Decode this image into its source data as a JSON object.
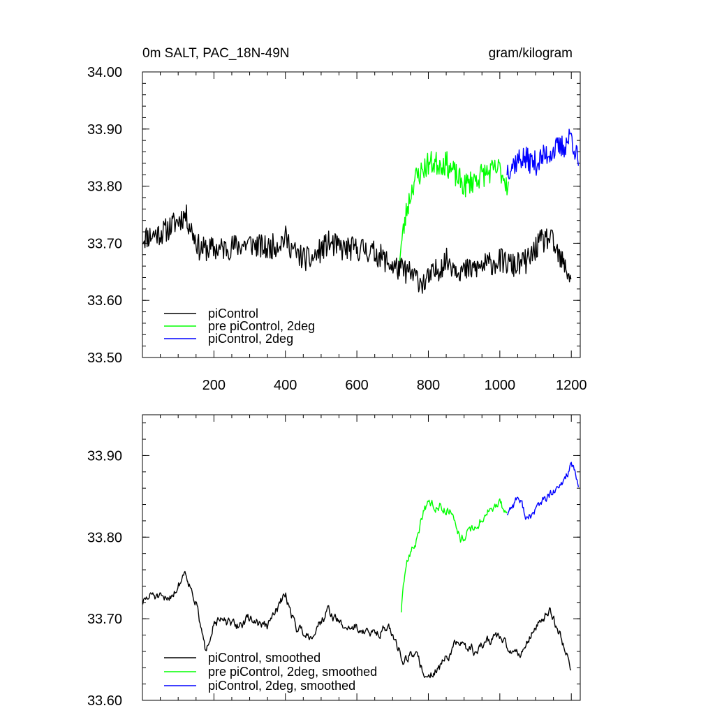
{
  "chart_data": [
    {
      "type": "line",
      "title_left": "0m SALT, PAC_18N-49N",
      "title_right": "gram/kilogram",
      "xlabel": "",
      "ylabel": "",
      "xlim": [
        0,
        1225
      ],
      "ylim": [
        33.5,
        34.0
      ],
      "x_ticks": [
        200,
        400,
        600,
        800,
        1000,
        1200
      ],
      "x_tick_labels": [
        "200",
        "400",
        "600",
        "800",
        "1000",
        "1200"
      ],
      "y_ticks": [
        33.5,
        33.6,
        33.7,
        33.8,
        33.9,
        34.0
      ],
      "y_tick_labels": [
        "33.50",
        "33.60",
        "33.70",
        "33.80",
        "33.90",
        "34.00"
      ],
      "grid": false,
      "legend_position": "bottom-left",
      "series": [
        {
          "name": "piControl",
          "color": "#000000",
          "noise": 0.022,
          "seed": 11,
          "points": [
            [
              1,
              33.71
            ],
            [
              60,
              33.72
            ],
            [
              120,
              33.75
            ],
            [
              160,
              33.69
            ],
            [
              220,
              33.69
            ],
            [
              300,
              33.7
            ],
            [
              350,
              33.69
            ],
            [
              380,
              33.7
            ],
            [
              400,
              33.71
            ],
            [
              430,
              33.68
            ],
            [
              470,
              33.67
            ],
            [
              520,
              33.7
            ],
            [
              560,
              33.69
            ],
            [
              620,
              33.69
            ],
            [
              660,
              33.68
            ],
            [
              700,
              33.66
            ],
            [
              740,
              33.65
            ],
            [
              790,
              33.63
            ],
            [
              850,
              33.67
            ],
            [
              900,
              33.65
            ],
            [
              950,
              33.66
            ],
            [
              1000,
              33.67
            ],
            [
              1040,
              33.66
            ],
            [
              1080,
              33.67
            ],
            [
              1110,
              33.7
            ],
            [
              1140,
              33.71
            ],
            [
              1170,
              33.67
            ],
            [
              1200,
              33.64
            ]
          ]
        },
        {
          "name": "pre piControl, 2deg",
          "color": "#00ff00",
          "noise": 0.022,
          "seed": 23,
          "points": [
            [
              720,
              33.68
            ],
            [
              740,
              33.76
            ],
            [
              760,
              33.81
            ],
            [
              800,
              33.84
            ],
            [
              850,
              33.84
            ],
            [
              900,
              33.8
            ],
            [
              950,
              33.82
            ],
            [
              1000,
              33.83
            ],
            [
              1024,
              33.8
            ]
          ]
        },
        {
          "name": "piControl, 2deg",
          "color": "#0000ff",
          "noise": 0.022,
          "seed": 37,
          "points": [
            [
              1020,
              33.83
            ],
            [
              1060,
              33.85
            ],
            [
              1100,
              33.84
            ],
            [
              1140,
              33.86
            ],
            [
              1180,
              33.87
            ],
            [
              1200,
              33.89
            ],
            [
              1220,
              33.84
            ]
          ]
        }
      ]
    },
    {
      "type": "line",
      "xlabel": "",
      "ylabel": "",
      "xlim": [
        0,
        1225
      ],
      "ylim": [
        33.6,
        33.95
      ],
      "x_ticks": [
        200,
        400,
        600,
        800,
        1000,
        1200
      ],
      "y_ticks": [
        33.6,
        33.7,
        33.8,
        33.9
      ],
      "y_tick_labels": [
        "33.60",
        "33.70",
        "33.80",
        "33.90"
      ],
      "grid": false,
      "legend_position": "bottom-left",
      "series": [
        {
          "name": "piControl, smoothed",
          "color": "#000000",
          "noise": 0.008,
          "seed": 51,
          "points": [
            [
              1,
              33.72
            ],
            [
              30,
              33.73
            ],
            [
              60,
              33.72
            ],
            [
              100,
              33.74
            ],
            [
              120,
              33.76
            ],
            [
              150,
              33.72
            ],
            [
              175,
              33.66
            ],
            [
              200,
              33.7
            ],
            [
              260,
              33.69
            ],
            [
              300,
              33.7
            ],
            [
              350,
              33.69
            ],
            [
              400,
              33.73
            ],
            [
              430,
              33.69
            ],
            [
              470,
              33.68
            ],
            [
              520,
              33.71
            ],
            [
              560,
              33.69
            ],
            [
              600,
              33.69
            ],
            [
              640,
              33.68
            ],
            [
              680,
              33.69
            ],
            [
              700,
              33.68
            ],
            [
              730,
              33.65
            ],
            [
              760,
              33.66
            ],
            [
              790,
              33.63
            ],
            [
              830,
              33.64
            ],
            [
              880,
              33.67
            ],
            [
              930,
              33.66
            ],
            [
              990,
              33.68
            ],
            [
              1030,
              33.66
            ],
            [
              1060,
              33.66
            ],
            [
              1100,
              33.69
            ],
            [
              1140,
              33.71
            ],
            [
              1170,
              33.68
            ],
            [
              1200,
              33.64
            ]
          ]
        },
        {
          "name": "pre piControl, 2deg, smoothed",
          "color": "#00ff00",
          "noise": 0.008,
          "seed": 63,
          "points": [
            [
              724,
              33.71
            ],
            [
              740,
              33.77
            ],
            [
              770,
              33.8
            ],
            [
              790,
              33.84
            ],
            [
              830,
              33.84
            ],
            [
              870,
              33.83
            ],
            [
              890,
              33.8
            ],
            [
              930,
              33.81
            ],
            [
              960,
              33.83
            ],
            [
              1000,
              33.84
            ],
            [
              1020,
              33.83
            ]
          ]
        },
        {
          "name": "piControl, 2deg, smoothed",
          "color": "#0000ff",
          "noise": 0.008,
          "seed": 77,
          "points": [
            [
              1020,
              33.83
            ],
            [
              1050,
              33.85
            ],
            [
              1080,
              33.82
            ],
            [
              1110,
              33.84
            ],
            [
              1140,
              33.85
            ],
            [
              1170,
              33.86
            ],
            [
              1200,
              33.89
            ],
            [
              1220,
              33.86
            ]
          ]
        }
      ]
    }
  ]
}
